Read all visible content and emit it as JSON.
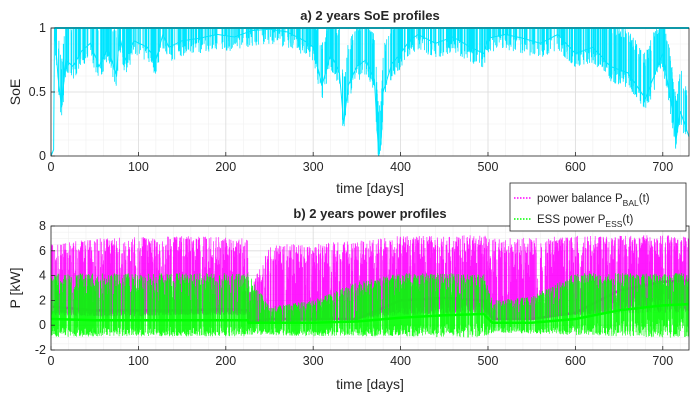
{
  "chart_data": [
    {
      "type": "line",
      "title": "a) 2 years SoE profiles",
      "xlabel": "time [days]",
      "ylabel": "SoE",
      "xlim": [
        0,
        730
      ],
      "ylim": [
        0,
        1
      ],
      "xticks": [
        0,
        100,
        200,
        300,
        400,
        500,
        600,
        700
      ],
      "yticks": [
        0,
        0.5,
        1
      ],
      "grid": true,
      "series": [
        {
          "color": "#00e5ff",
          "x": [
            0,
            3,
            4,
            8,
            12,
            17,
            25,
            35,
            45,
            55,
            65,
            75,
            78,
            85,
            95,
            110,
            120,
            128,
            135,
            150,
            170,
            190,
            210,
            230,
            250,
            270,
            290,
            300,
            310,
            320,
            330,
            335,
            340,
            350,
            360,
            370,
            375,
            378,
            380,
            390,
            400,
            410,
            420,
            440,
            460,
            480,
            495,
            500,
            520,
            540,
            560,
            580,
            600,
            620,
            640,
            660,
            680,
            700,
            710,
            715,
            720,
            730
          ],
          "values": [
            0.0,
            0.05,
            1.0,
            0.62,
            0.38,
            0.75,
            0.7,
            0.82,
            0.88,
            0.7,
            0.85,
            0.62,
            0.95,
            0.75,
            0.9,
            0.85,
            0.75,
            0.95,
            0.85,
            0.9,
            0.92,
            0.95,
            0.93,
            0.98,
            0.99,
            0.97,
            0.9,
            0.85,
            0.55,
            0.8,
            0.65,
            0.25,
            0.55,
            0.7,
            0.75,
            0.6,
            0.0,
            0.15,
            0.5,
            0.72,
            0.8,
            0.9,
            0.95,
            0.88,
            0.93,
            0.85,
            0.8,
            0.92,
            0.95,
            0.92,
            0.88,
            0.95,
            0.8,
            0.85,
            0.7,
            0.65,
            0.45,
            0.8,
            0.4,
            0.12,
            0.35,
            0.15
          ]
        }
      ]
    },
    {
      "type": "scatter",
      "title": "b) 2 years power profiles",
      "xlabel": "time [days]",
      "ylabel": "P [kW]",
      "xlim": [
        0,
        730
      ],
      "ylim": [
        -2,
        8
      ],
      "xticks": [
        0,
        100,
        200,
        300,
        400,
        500,
        600,
        700
      ],
      "yticks": [
        -2,
        0,
        2,
        4,
        6,
        8
      ],
      "grid": true,
      "legend_position": "top-right",
      "series": [
        {
          "legend_main": "power balance P",
          "legend_sub": "BAL",
          "legend_tail": "(t)",
          "color": "#ff00ff",
          "envelope": {
            "x": [
              0,
              50,
              100,
              150,
              200,
              225,
              226,
              250,
              300,
              350,
              400,
              450,
              495,
              505,
              550,
              600,
              650,
              700,
              730
            ],
            "upper": [
              6.5,
              7.0,
              7.1,
              7.2,
              7.1,
              7.0,
              2.5,
              6.5,
              6.6,
              6.8,
              7.2,
              7.2,
              7.3,
              7.0,
              7.1,
              7.2,
              7.2,
              7.3,
              7.1
            ],
            "lower": [
              0.8,
              0.7,
              0.7,
              0.8,
              0.8,
              0.8,
              0.0,
              0.2,
              0.3,
              0.5,
              0.8,
              0.9,
              1.0,
              0.4,
              0.6,
              0.8,
              0.9,
              1.0,
              1.0
            ],
            "core": [
              1.5,
              1.2,
              1.2,
              1.2,
              1.3,
              1.2,
              0.3,
              0.5,
              0.5,
              0.5,
              2.0,
              2.2,
              2.0,
              0.5,
              0.5,
              1.0,
              2.8,
              3.5,
              3.6
            ]
          }
        },
        {
          "legend_main": "ESS power P",
          "legend_sub": "ESS",
          "legend_tail": "(t)",
          "color": "#00ff00",
          "envelope": {
            "x": [
              0,
              50,
              100,
              150,
              200,
              225,
              226,
              250,
              300,
              350,
              400,
              450,
              495,
              505,
              550,
              600,
              650,
              700,
              730
            ],
            "upper": [
              4.2,
              4.2,
              4.2,
              4.2,
              4.2,
              4.2,
              4.2,
              1.5,
              2.0,
              3.5,
              4.2,
              4.2,
              4.2,
              2.0,
              2.3,
              4.2,
              4.2,
              4.2,
              4.2
            ],
            "lower": [
              -1.0,
              -0.9,
              -0.9,
              -0.9,
              -0.9,
              -0.9,
              -0.8,
              -0.8,
              -0.9,
              -0.9,
              -0.9,
              -1.0,
              -1.0,
              -0.6,
              -0.7,
              -0.8,
              -0.9,
              -1.0,
              -1.0
            ],
            "core": [
              0.5,
              0.4,
              0.4,
              0.4,
              0.4,
              0.4,
              0.2,
              0.2,
              0.2,
              0.3,
              0.6,
              0.8,
              0.9,
              0.2,
              0.2,
              0.5,
              1.2,
              1.6,
              1.7
            ]
          }
        }
      ]
    }
  ]
}
